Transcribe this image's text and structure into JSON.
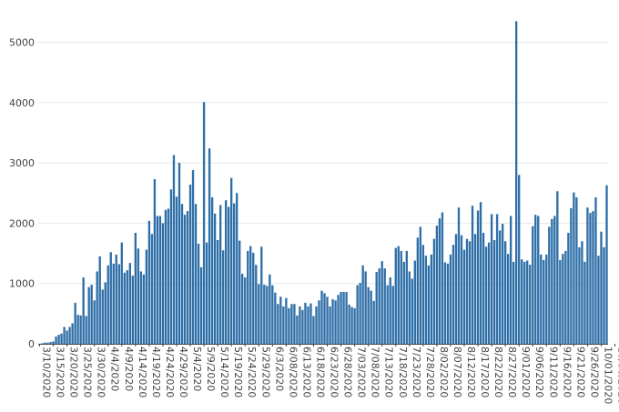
{
  "chart_data": {
    "type": "bar",
    "title": "",
    "xlabel": "",
    "ylabel": "",
    "ylim": [
      0,
      5400
    ],
    "yticks": [
      0,
      1000,
      2000,
      3000,
      4000,
      5000
    ],
    "grid": true,
    "bar_color": "#2f6fa8",
    "tick_labels": [
      "3/10/2020",
      "3/15/2020",
      "3/20/2020",
      "3/25/2020",
      "3/30/2020",
      "4/4/2020",
      "4/9/2020",
      "4/14/2020",
      "4/19/2020",
      "4/24/2020",
      "4/29/2020",
      "5/4/2020",
      "5/9/2020",
      "5/14/2020",
      "5/19/2020",
      "5/24/2020",
      "5/29/2020",
      "6/3/2020",
      "6/08/2020",
      "6/13/2020",
      "6/18/2020",
      "6/23/2020",
      "6/28/2020",
      "7/03/2020",
      "7/08/2020",
      "7/13/2020",
      "7/18/2020",
      "7/23/2020",
      "7/28/2020",
      "8/02/2020",
      "8/07/2020",
      "8/12/2020",
      "8/17/2020",
      "8/22/2020",
      "8/27/2020",
      "9/01/2020",
      "9/06/2020",
      "9/11/2020",
      "9/16/2020",
      "9/21/2020",
      "9/26/2020",
      "10/01/2020",
      "10/06/2020"
    ],
    "tick_index_step": 5,
    "values": [
      0,
      10,
      20,
      20,
      30,
      40,
      120,
      150,
      170,
      280,
      220,
      280,
      340,
      680,
      480,
      470,
      1100,
      460,
      940,
      980,
      720,
      1200,
      1450,
      900,
      1020,
      1300,
      1520,
      1330,
      1480,
      1320,
      1680,
      1180,
      1220,
      1340,
      1130,
      1840,
      1580,
      1200,
      1150,
      1560,
      2040,
      1820,
      2730,
      2120,
      2120,
      2000,
      2220,
      2240,
      2560,
      3130,
      2440,
      3000,
      2320,
      2140,
      2200,
      2640,
      2880,
      2320,
      1660,
      1270,
      4010,
      1680,
      3240,
      2430,
      2160,
      1720,
      2300,
      1550,
      2380,
      2270,
      2750,
      2330,
      2500,
      1710,
      1160,
      1100,
      1540,
      1620,
      1510,
      1310,
      990,
      1610,
      980,
      960,
      1150,
      970,
      850,
      660,
      780,
      620,
      760,
      590,
      660,
      660,
      470,
      620,
      560,
      680,
      620,
      670,
      460,
      620,
      720,
      880,
      840,
      780,
      620,
      740,
      720,
      810,
      860,
      860,
      860,
      650,
      610,
      590,
      970,
      1010,
      1300,
      1200,
      940,
      880,
      710,
      1190,
      1250,
      1370,
      1250,
      970,
      1100,
      960,
      1590,
      1620,
      1540,
      1360,
      1540,
      1200,
      1080,
      1380,
      1760,
      1940,
      1640,
      1460,
      1300,
      1480,
      1740,
      1960,
      2080,
      2180,
      1350,
      1330,
      1480,
      1640,
      1820,
      2260,
      1800,
      1560,
      1740,
      1700,
      2290,
      1820,
      2210,
      2350,
      1840,
      1610,
      1680,
      2150,
      1720,
      2150,
      1880,
      1990,
      1700,
      1490,
      2120,
      1360,
      5350,
      2800,
      1400,
      1360,
      1380,
      1310,
      1950,
      2140,
      2120,
      1480,
      1390,
      1480,
      1940,
      2070,
      2120,
      2530,
      1390,
      1490,
      1540,
      1840,
      2250,
      2510,
      2430,
      1600,
      1700,
      1360,
      2260,
      2170,
      2200,
      2430,
      1460,
      1860,
      1600,
      2630
    ]
  }
}
